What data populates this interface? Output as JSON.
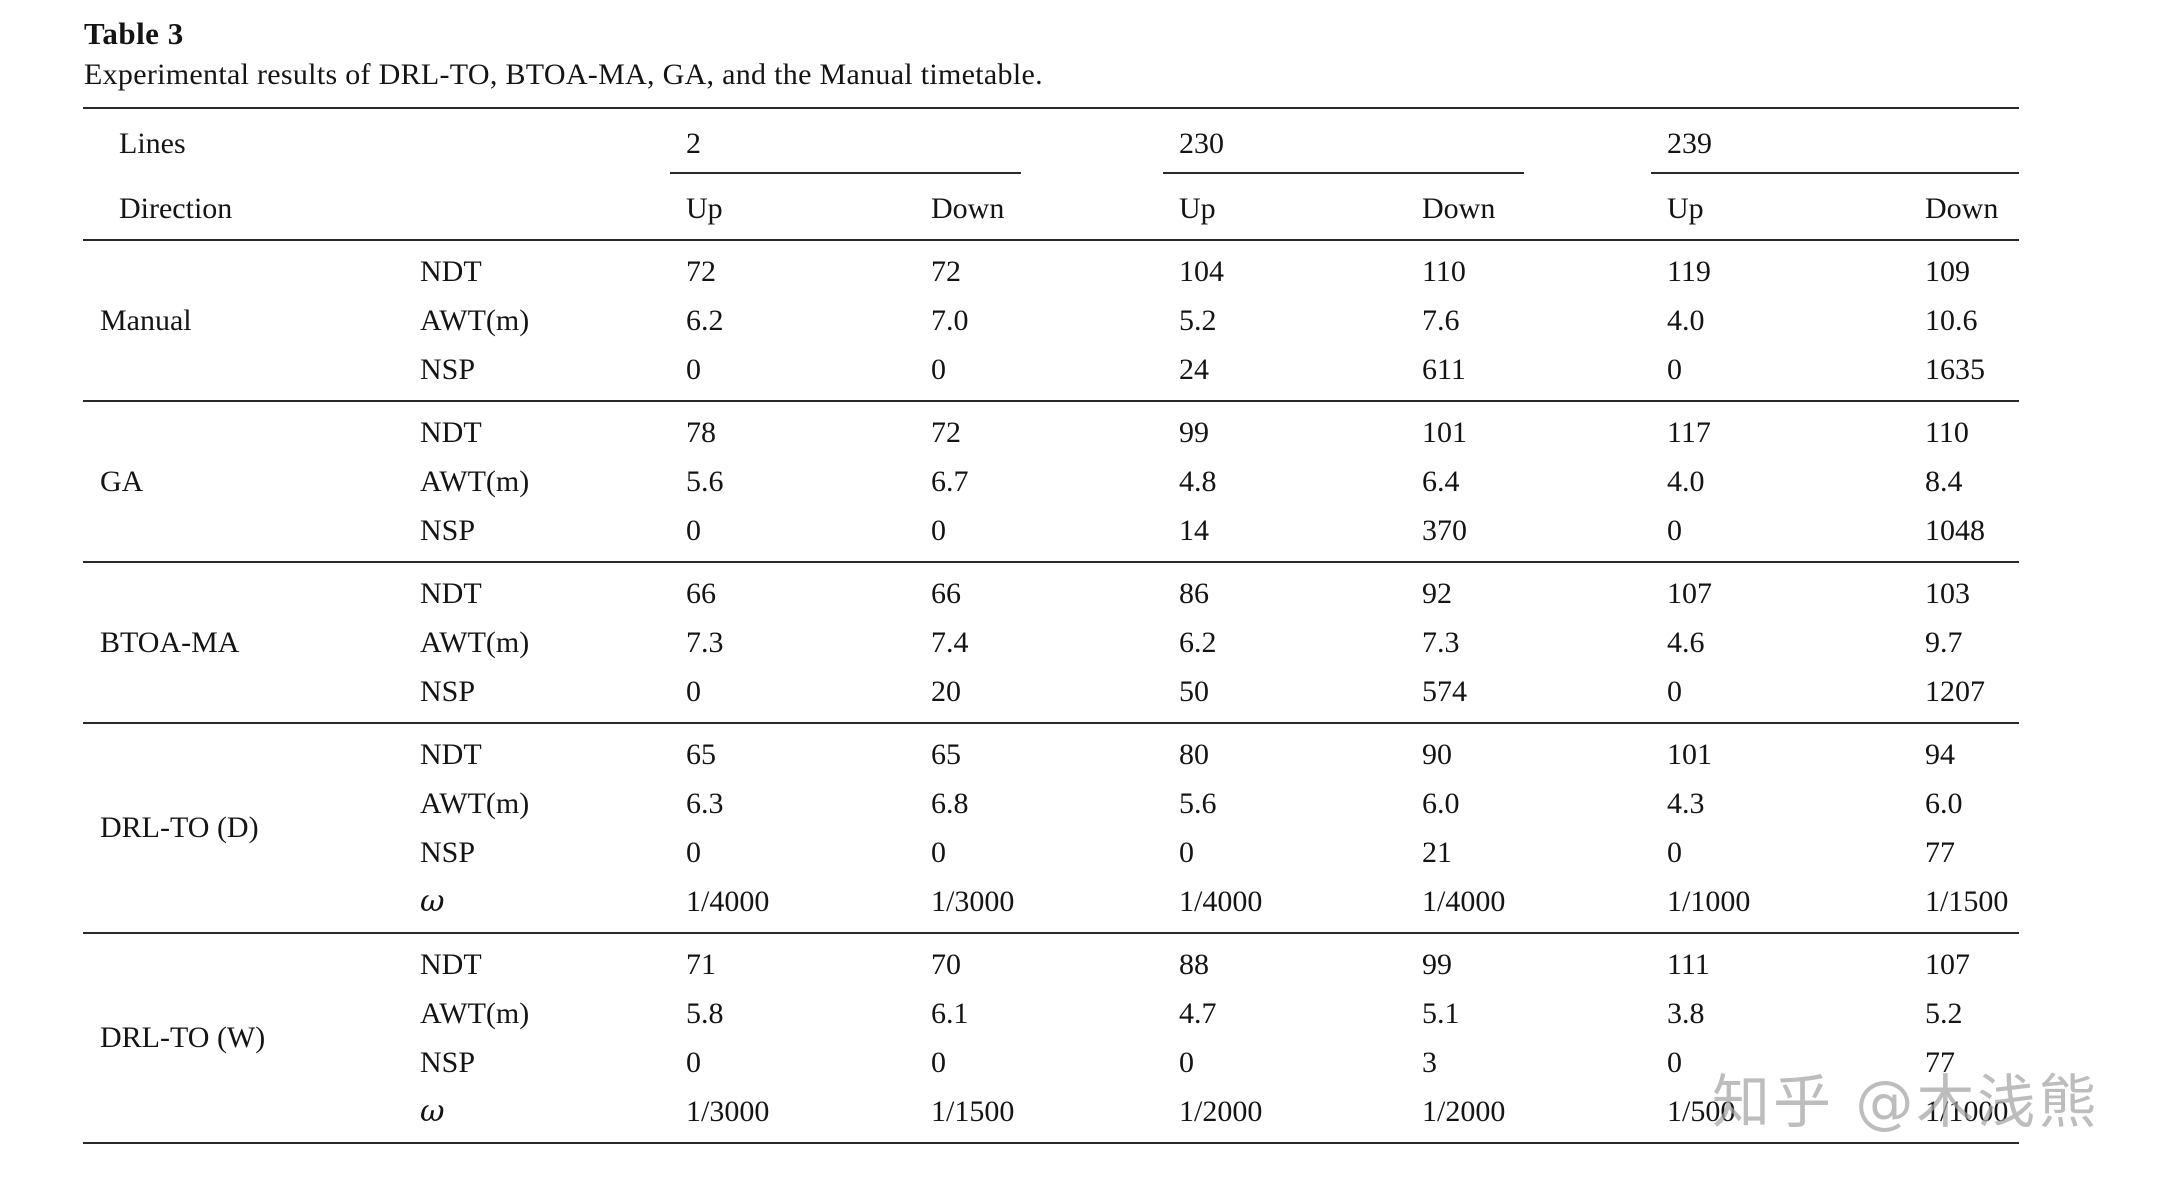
{
  "table": {
    "label": "Table 3",
    "caption": "Experimental results of DRL-TO, BTOA-MA, GA, and the Manual timetable.",
    "header": {
      "lines_label": "Lines",
      "direction_label": "Direction",
      "lines": [
        "2",
        "230",
        "239"
      ],
      "directions": [
        "Up",
        "Down"
      ]
    },
    "groups": [
      {
        "name": "Manual",
        "rows": [
          {
            "metric": "NDT",
            "values": [
              "72",
              "72",
              "104",
              "110",
              "119",
              "109"
            ]
          },
          {
            "metric": "AWT(m)",
            "values": [
              "6.2",
              "7.0",
              "5.2",
              "7.6",
              "4.0",
              "10.6"
            ]
          },
          {
            "metric": "NSP",
            "values": [
              "0",
              "0",
              "24",
              "611",
              "0",
              "1635"
            ]
          }
        ]
      },
      {
        "name": "GA",
        "rows": [
          {
            "metric": "NDT",
            "values": [
              "78",
              "72",
              "99",
              "101",
              "117",
              "110"
            ]
          },
          {
            "metric": "AWT(m)",
            "values": [
              "5.6",
              "6.7",
              "4.8",
              "6.4",
              "4.0",
              "8.4"
            ]
          },
          {
            "metric": "NSP",
            "values": [
              "0",
              "0",
              "14",
              "370",
              "0",
              "1048"
            ]
          }
        ]
      },
      {
        "name": "BTOA-MA",
        "rows": [
          {
            "metric": "NDT",
            "values": [
              "66",
              "66",
              "86",
              "92",
              "107",
              "103"
            ]
          },
          {
            "metric": "AWT(m)",
            "values": [
              "7.3",
              "7.4",
              "6.2",
              "7.3",
              "4.6",
              "9.7"
            ]
          },
          {
            "metric": "NSP",
            "values": [
              "0",
              "20",
              "50",
              "574",
              "0",
              "1207"
            ]
          }
        ]
      },
      {
        "name": "DRL-TO (D)",
        "rows": [
          {
            "metric": "NDT",
            "values": [
              "65",
              "65",
              "80",
              "90",
              "101",
              "94"
            ]
          },
          {
            "metric": "AWT(m)",
            "values": [
              "6.3",
              "6.8",
              "5.6",
              "6.0",
              "4.3",
              "6.0"
            ]
          },
          {
            "metric": "NSP",
            "values": [
              "0",
              "0",
              "0",
              "21",
              "0",
              "77"
            ]
          },
          {
            "metric": "ω",
            "values": [
              "1/4000",
              "1/3000",
              "1/4000",
              "1/4000",
              "1/1000",
              "1/1500"
            ]
          }
        ]
      },
      {
        "name": "DRL-TO (W)",
        "rows": [
          {
            "metric": "NDT",
            "values": [
              "71",
              "70",
              "88",
              "99",
              "111",
              "107"
            ]
          },
          {
            "metric": "AWT(m)",
            "values": [
              "5.8",
              "6.1",
              "4.7",
              "5.1",
              "3.8",
              "5.2"
            ]
          },
          {
            "metric": "NSP",
            "values": [
              "0",
              "0",
              "0",
              "3",
              "0",
              "77"
            ]
          },
          {
            "metric": "ω",
            "values": [
              "1/3000",
              "1/1500",
              "1/2000",
              "1/2000",
              "1/500",
              "1/1000"
            ]
          }
        ]
      }
    ]
  },
  "watermark": {
    "text": "知乎 @木浅熊"
  }
}
